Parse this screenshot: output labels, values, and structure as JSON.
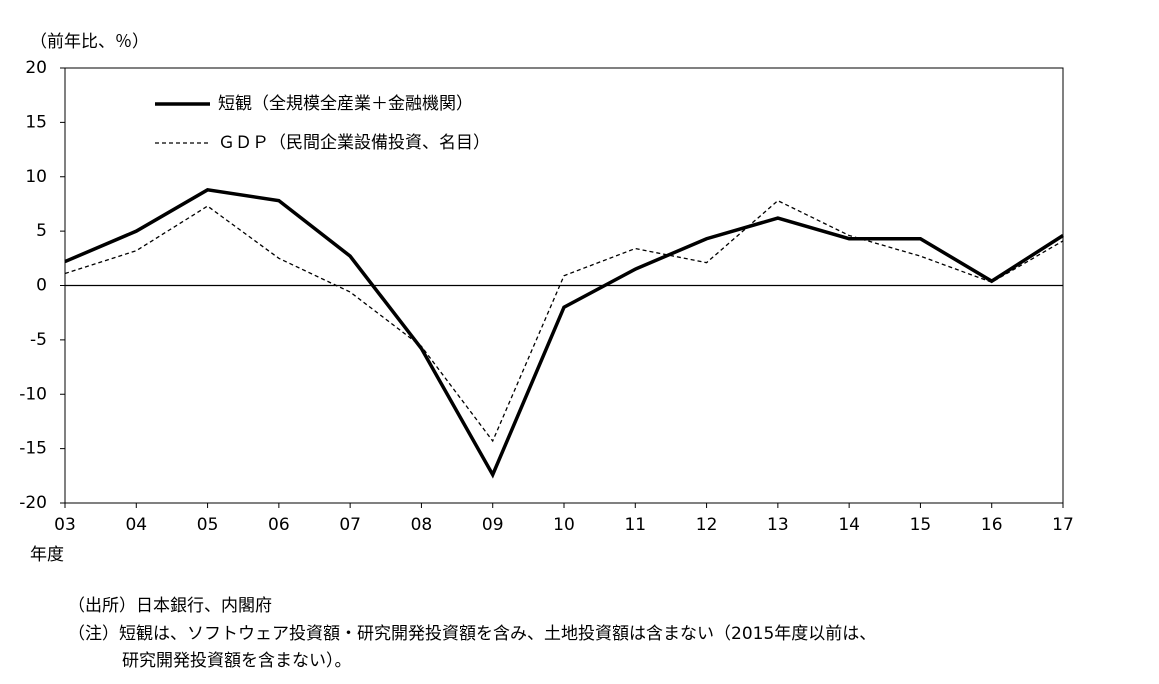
{
  "chart_data": {
    "type": "line",
    "y_axis_label": "（前年比、％）",
    "x_axis_label": "年度",
    "categories": [
      "03",
      "04",
      "05",
      "06",
      "07",
      "08",
      "09",
      "10",
      "11",
      "12",
      "13",
      "14",
      "15",
      "16",
      "17"
    ],
    "series": [
      {
        "name": "短観（全規模全産業＋金融機関）",
        "color": "#000000",
        "line_style": "solid",
        "values": [
          2.2,
          5.0,
          8.8,
          7.8,
          2.7,
          -5.8,
          -17.4,
          -2.0,
          1.5,
          4.3,
          6.2,
          4.3,
          4.3,
          0.4,
          4.6
        ]
      },
      {
        "name": "ＧＤＰ（民間企業設備投資、名目）",
        "color": "#000000",
        "line_style": "dashed",
        "values": [
          1.1,
          3.2,
          7.3,
          2.5,
          -0.6,
          -5.6,
          -14.3,
          0.9,
          3.4,
          2.1,
          7.8,
          4.6,
          2.7,
          0.3,
          4.1
        ]
      }
    ],
    "ylim": [
      -20,
      20
    ],
    "yticks": [
      20,
      15,
      10,
      5,
      0,
      -5,
      -10,
      -15,
      -20
    ],
    "legend": "upper left",
    "notes": [
      "（出所）日本銀行、内閣府",
      "（注）短観は、ソフトウェア投資額・研究開発投資額を含み、土地投資額は含まない（2015年度以前は、",
      "研究開発投資額を含まない）。"
    ]
  }
}
